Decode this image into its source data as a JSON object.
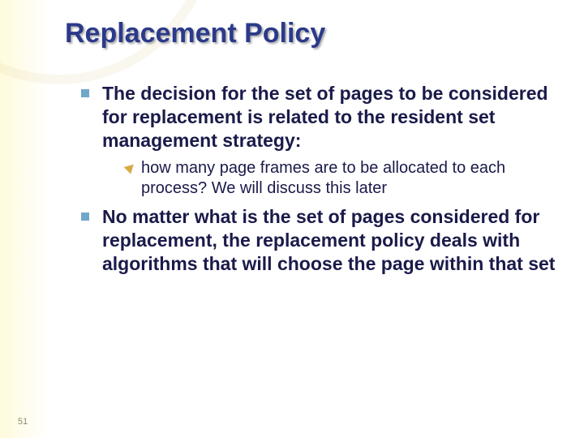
{
  "colors": {
    "title": "#2b3a8a",
    "body": "#1a1a4a",
    "bullet_level1": "#6fa8c8",
    "bullet_level2": "#d8aa44",
    "page_number": "#8a8a6a"
  },
  "title": "Replacement Policy",
  "page_number": "51",
  "bullets": [
    {
      "runs": [
        {
          "text": "The decision for the set of pages to be considered for replacement is related to the "
        },
        {
          "text": "resident set management strategy"
        },
        {
          "text": ":"
        }
      ],
      "children": [
        {
          "runs": [
            {
              "text": "how many page frames are to be allocated to each process? We will discuss this later"
            }
          ]
        }
      ]
    },
    {
      "runs": [
        {
          "text": "No matter what is the set of pages considered for replacement, the "
        },
        {
          "text": "replacement policy"
        },
        {
          "text": " deals with algorithms that will "
        },
        {
          "text": "choose the page within that set"
        }
      ]
    }
  ]
}
